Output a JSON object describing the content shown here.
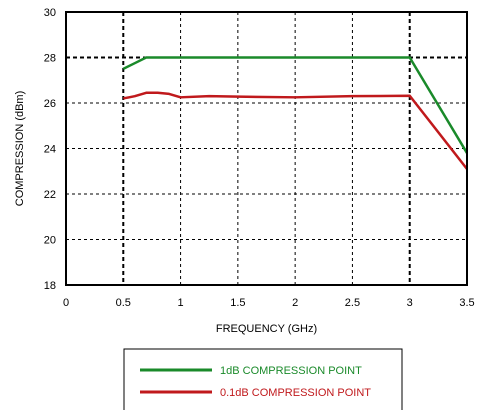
{
  "chart_data": {
    "type": "line",
    "xlabel": "FREQUENCY (GHz)",
    "ylabel": "COMPRESSION (dBm)",
    "xlim": [
      0,
      3.5
    ],
    "ylim": [
      18,
      30
    ],
    "xticks": [
      0,
      0.5,
      1,
      1.5,
      2,
      2.5,
      3,
      3.5
    ],
    "xtick_labels": [
      "0",
      "0.5",
      "1",
      "1.5",
      "2",
      "2.5",
      "3",
      "3.5"
    ],
    "yticks": [
      18,
      20,
      22,
      24,
      26,
      28,
      30
    ],
    "ytick_labels": [
      "18",
      "20",
      "22",
      "24",
      "26",
      "28",
      "30"
    ],
    "grid": true,
    "legend_position": "bottom-center",
    "series": [
      {
        "name": "1dB COMPRESSION POINT",
        "color": "#1a8a2a",
        "x": [
          0.5,
          0.6,
          0.7,
          1.0,
          1.5,
          2.0,
          2.5,
          3.0,
          3.5
        ],
        "y": [
          27.5,
          27.75,
          28.0,
          28.0,
          28.0,
          28.0,
          28.0,
          28.0,
          23.8
        ]
      },
      {
        "name": "0.1dB COMPRESSION POINT",
        "color": "#c0191c",
        "x": [
          0.5,
          0.6,
          0.7,
          0.8,
          0.9,
          1.0,
          1.25,
          1.5,
          2.0,
          2.5,
          3.0,
          3.5
        ],
        "y": [
          26.2,
          26.3,
          26.45,
          26.45,
          26.4,
          26.25,
          26.3,
          26.28,
          26.25,
          26.3,
          26.32,
          23.1
        ]
      }
    ]
  }
}
